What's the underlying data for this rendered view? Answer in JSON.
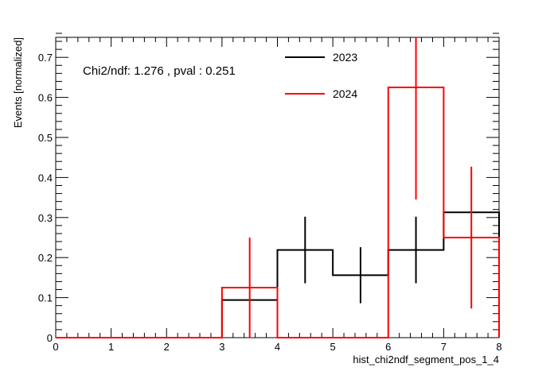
{
  "chart_data": {
    "type": "histogram",
    "xlabel": "hist_chi2ndf_segment_pos_1_4",
    "ylabel": "Events [normalized]",
    "xlim": [
      0,
      8
    ],
    "ylim": [
      0,
      0.75
    ],
    "x_ticks": [
      "0",
      "1",
      "2",
      "3",
      "4",
      "5",
      "6",
      "7",
      "8"
    ],
    "y_ticks": [
      "0",
      "0.1",
      "0.2",
      "0.3",
      "0.4",
      "0.5",
      "0.6",
      "0.7"
    ],
    "bin_edges": [
      0,
      1,
      2,
      3,
      4,
      5,
      6,
      7,
      8
    ],
    "annotation": "Chi2/ndf: 1.276 , pval : 0.251",
    "legend_position": "top-center",
    "grid": false,
    "series": [
      {
        "name": "2023",
        "color": "#000000",
        "values": [
          0,
          0,
          0,
          0.094,
          0.219,
          0.156,
          0.219,
          0.313
        ],
        "errors": [
          0,
          0,
          0,
          0,
          0.083,
          0.07,
          0.083,
          0
        ]
      },
      {
        "name": "2024",
        "color": "#ff0000",
        "values": [
          0,
          0,
          0,
          0.125,
          0,
          0,
          0.625,
          0.25
        ],
        "errors": [
          0,
          0,
          0,
          0.125,
          0,
          0,
          0.28,
          0.177
        ]
      }
    ]
  }
}
